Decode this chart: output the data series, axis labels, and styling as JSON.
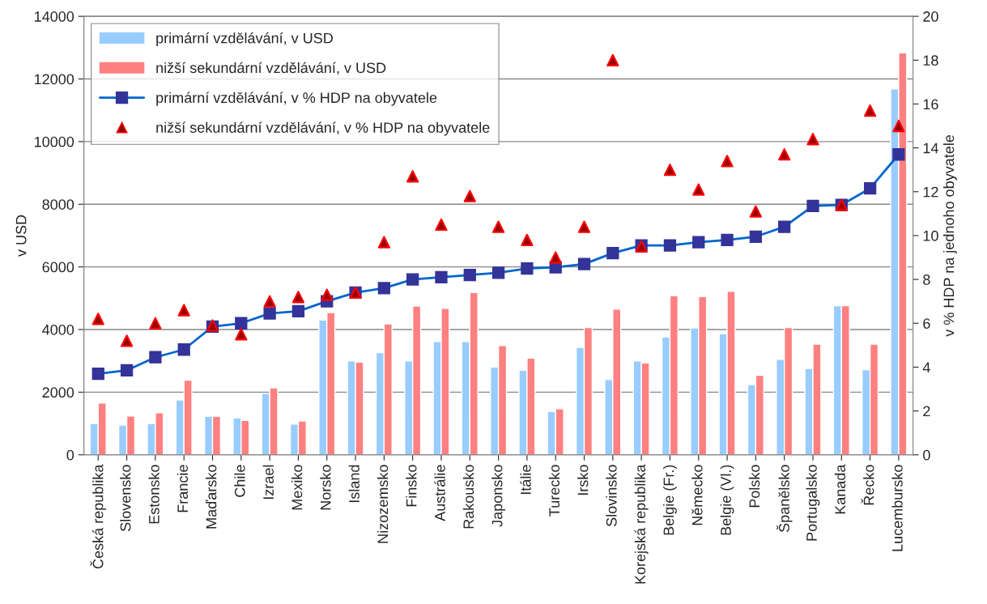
{
  "chart_data": {
    "type": "bar",
    "categories": [
      "Česká republika",
      "Slovensko",
      "Estonsko",
      "Francie",
      "Maďarsko",
      "Chile",
      "Izrael",
      "Mexiko",
      "Norsko",
      "Island",
      "Nizozemsko",
      "Finsko",
      "Austrálie",
      "Rakousko",
      "Japonsko",
      "Itálie",
      "Turecko",
      "Irsko",
      "Slovinsko",
      "Korejská republika",
      "Belgie (Fr.)",
      "Německo",
      "Belgie (Vl.)",
      "Polsko",
      "Španělsko",
      "Portugalsko",
      "Kanada",
      "Řecko",
      "Lucembursko"
    ],
    "series": [
      {
        "name": "primární vzdělávání, v USD",
        "color": "#99ccff",
        "values": [
          1000,
          950,
          1000,
          1750,
          1230,
          1180,
          1960,
          980,
          4300,
          3000,
          3260,
          3000,
          3620,
          3620,
          2800,
          2700,
          1380,
          3430,
          2400,
          3000,
          3760,
          4050,
          3860,
          2240,
          3050,
          2760,
          4760,
          2720,
          11680
        ]
      },
      {
        "name": "nižší sekundární vzdělávání, v USD",
        "color": "#ff8080",
        "values": [
          1650,
          1240,
          1340,
          2380,
          1230,
          1100,
          2140,
          1080,
          4540,
          2960,
          4180,
          4750,
          4680,
          5180,
          3490,
          3090,
          1470,
          4060,
          4650,
          2930,
          5080,
          5050,
          5220,
          2540,
          4060,
          3530,
          4760,
          3530,
          12830
        ]
      },
      {
        "name": "primární vzdělávání, v % HDP na obyvatele",
        "type": "line",
        "axis": "y2",
        "color": "#0066cc",
        "marker": "square",
        "line_style": "solid",
        "values": [
          3.7,
          3.85,
          4.45,
          4.8,
          5.85,
          6.0,
          6.45,
          6.55,
          7.0,
          7.4,
          7.6,
          8.0,
          8.1,
          8.2,
          8.3,
          8.5,
          8.55,
          8.7,
          9.2,
          9.55,
          9.55,
          9.7,
          9.8,
          9.95,
          10.4,
          11.35,
          11.4,
          12.15,
          13.7
        ]
      },
      {
        "name": "nižší sekundární vzdělávání, v % HDP na obyvatele",
        "type": "scatter",
        "axis": "y2",
        "color": "#ff0000",
        "marker": "triangle",
        "values": [
          6.2,
          5.2,
          6.0,
          6.6,
          5.9,
          5.5,
          7.0,
          7.2,
          7.3,
          7.4,
          9.7,
          12.7,
          10.5,
          11.8,
          10.4,
          9.8,
          9.0,
          10.4,
          18.0,
          9.5,
          13.0,
          12.1,
          13.4,
          11.1,
          13.7,
          14.4,
          11.4,
          15.7,
          15.0
        ]
      }
    ],
    "ylabel": "v USD",
    "y2label": "v % HDP na jednoho obyvatele",
    "ylim": [
      0,
      14000
    ],
    "yticks": [
      0,
      2000,
      4000,
      6000,
      8000,
      10000,
      12000,
      14000
    ],
    "y2lim": [
      0,
      20
    ],
    "y2ticks": [
      0,
      2,
      4,
      6,
      8,
      10,
      12,
      14,
      16,
      18,
      20
    ],
    "grid": "y",
    "legend": "top left"
  }
}
